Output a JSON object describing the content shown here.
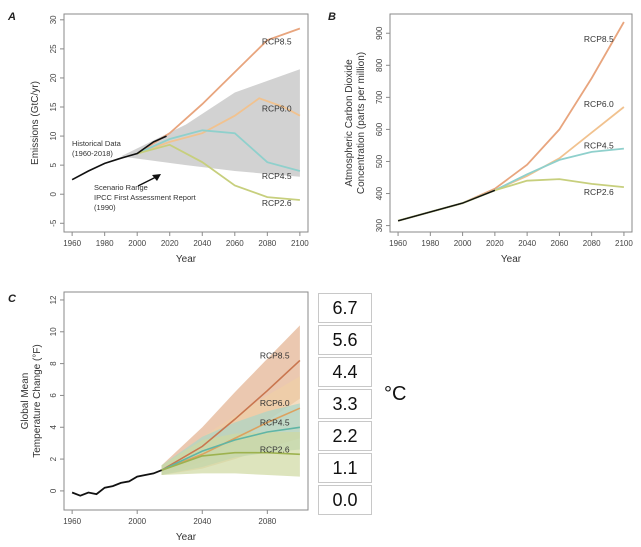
{
  "colors": {
    "rcp85": "#e8a57e",
    "rcp60": "#f1c28f",
    "rcp45": "#8fd0cc",
    "rcp26": "#c7cf7d",
    "historical": "#111111",
    "scenario_range": "#d2d2d2",
    "axis": "#8a8a8a"
  },
  "chart_data": [
    {
      "type": "line",
      "panel_label": "A",
      "ylabel": "Emissions (GtC/yr)",
      "xlabel": "Year",
      "xlim": [
        1955,
        2105
      ],
      "ylim": [
        -6.5,
        31
      ],
      "xticks": [
        1960,
        1980,
        2000,
        2020,
        2040,
        2060,
        2080,
        2100
      ],
      "yticks": [
        -5,
        0,
        5,
        10,
        15,
        20,
        25,
        30
      ],
      "grid": false,
      "series": [
        {
          "name": "RCP8.5",
          "x": [
            2000,
            2020,
            2040,
            2060,
            2080,
            2100
          ],
          "y": [
            7,
            10.5,
            15.5,
            21,
            26.5,
            28.5
          ]
        },
        {
          "name": "RCP6.0",
          "x": [
            2000,
            2020,
            2040,
            2060,
            2075,
            2090,
            2100
          ],
          "y": [
            7,
            9,
            10.5,
            13.5,
            16.5,
            15,
            13.5
          ]
        },
        {
          "name": "RCP4.5",
          "x": [
            2000,
            2020,
            2040,
            2060,
            2080,
            2100
          ],
          "y": [
            7,
            9.5,
            11,
            10.5,
            5.5,
            4
          ]
        },
        {
          "name": "RCP2.6",
          "x": [
            2000,
            2020,
            2040,
            2060,
            2080,
            2100
          ],
          "y": [
            7,
            8.5,
            5.5,
            1.5,
            -0.5,
            -1
          ]
        },
        {
          "name": "",
          "x": [
            1960,
            1970,
            1980,
            1990,
            2000,
            2010,
            2018
          ],
          "y": [
            2.5,
            4,
            5.3,
            6.2,
            7,
            9,
            10
          ]
        }
      ],
      "band": {
        "x": [
          1990,
          2030,
          2060,
          2100
        ],
        "upper": [
          6.5,
          12,
          17.5,
          21.5
        ],
        "lower": [
          6.5,
          5,
          4,
          3
        ]
      },
      "annotations": [
        "Historical Data\n(1960-2018)",
        "Scenario Range\nIPCC First Assessment Report\n(1990)"
      ]
    },
    {
      "type": "line",
      "panel_label": "B",
      "ylabel": "Atmospheric Carbon Dioxide\nConcentration (parts per million)",
      "xlabel": "Year",
      "xlim": [
        1955,
        2105
      ],
      "ylim": [
        280,
        960
      ],
      "xticks": [
        1960,
        1980,
        2000,
        2020,
        2040,
        2060,
        2080,
        2100
      ],
      "yticks": [
        300,
        400,
        500,
        600,
        700,
        800,
        900
      ],
      "grid": false,
      "series": [
        {
          "name": "RCP8.5",
          "x": [
            1960,
            2000,
            2020,
            2040,
            2060,
            2080,
            2100
          ],
          "y": [
            315,
            370,
            415,
            490,
            600,
            760,
            935
          ]
        },
        {
          "name": "RCP6.0",
          "x": [
            1960,
            2000,
            2020,
            2040,
            2060,
            2080,
            2100
          ],
          "y": [
            315,
            370,
            410,
            455,
            510,
            590,
            670
          ]
        },
        {
          "name": "RCP4.5",
          "x": [
            1960,
            2000,
            2020,
            2040,
            2060,
            2080,
            2100
          ],
          "y": [
            315,
            370,
            410,
            460,
            505,
            530,
            540
          ]
        },
        {
          "name": "RCP2.6",
          "x": [
            1960,
            2000,
            2020,
            2040,
            2060,
            2080,
            2100
          ],
          "y": [
            315,
            370,
            410,
            440,
            445,
            430,
            420
          ]
        }
      ]
    },
    {
      "type": "line",
      "panel_label": "C",
      "ylabel": "Global Mean\nTemperature Change (°F)",
      "xlabel": "Year",
      "xlim": [
        1955,
        2105
      ],
      "ylim": [
        -1.2,
        12.5
      ],
      "xticks": [
        1960,
        2000,
        2040,
        2080
      ],
      "yticks": [
        0,
        2,
        4,
        6,
        8,
        10,
        12
      ],
      "grid": false,
      "series": [
        {
          "name": "RCP8.5",
          "x": [
            2015,
            2040,
            2060,
            2080,
            2100
          ],
          "y": [
            1.3,
            2.8,
            4.5,
            6.3,
            8.2
          ]
        },
        {
          "name": "RCP6.0",
          "x": [
            2015,
            2040,
            2060,
            2080,
            2100
          ],
          "y": [
            1.3,
            2.3,
            3.3,
            4.3,
            5.2
          ]
        },
        {
          "name": "RCP4.5",
          "x": [
            2015,
            2040,
            2060,
            2080,
            2100
          ],
          "y": [
            1.3,
            2.5,
            3.2,
            3.7,
            4.0
          ]
        },
        {
          "name": "RCP2.6",
          "x": [
            2015,
            2040,
            2060,
            2080,
            2100
          ],
          "y": [
            1.3,
            2.2,
            2.4,
            2.4,
            2.3
          ]
        },
        {
          "name": "",
          "x": [
            1960,
            1965,
            1970,
            1975,
            1980,
            1985,
            1990,
            1995,
            2000,
            2005,
            2010,
            2015
          ],
          "y": [
            -0.1,
            -0.3,
            -0.1,
            -0.2,
            0.2,
            0.3,
            0.5,
            0.6,
            0.9,
            1.0,
            1.1,
            1.3
          ]
        }
      ],
      "bands": [
        {
          "name": "RCP8.5",
          "x": [
            2015,
            2040,
            2060,
            2080,
            2100
          ],
          "upper": [
            1.6,
            4.0,
            6.2,
            8.3,
            10.4
          ],
          "lower": [
            1.0,
            1.8,
            3.0,
            4.4,
            5.8
          ]
        },
        {
          "name": "RCP6.0",
          "x": [
            2015,
            2040,
            2060,
            2080,
            2100
          ],
          "upper": [
            1.6,
            3.4,
            4.7,
            6.0,
            7.2
          ],
          "lower": [
            1.0,
            1.4,
            2.0,
            2.7,
            3.3
          ]
        },
        {
          "name": "RCP4.5",
          "x": [
            2015,
            2040,
            2060,
            2080,
            2100
          ],
          "upper": [
            1.6,
            3.4,
            4.3,
            5.0,
            5.5
          ],
          "lower": [
            1.0,
            1.5,
            2.1,
            2.4,
            2.6
          ]
        },
        {
          "name": "RCP2.6",
          "x": [
            2015,
            2040,
            2060,
            2080,
            2100
          ],
          "upper": [
            1.6,
            3.2,
            3.6,
            3.7,
            3.7
          ],
          "lower": [
            1.0,
            1.1,
            1.1,
            1.0,
            0.9
          ]
        }
      ],
      "celsius_scale": {
        "values": [
          "6.7",
          "5.6",
          "4.4",
          "3.3",
          "2.2",
          "1.1",
          "0.0"
        ],
        "unit": "°C"
      }
    }
  ]
}
